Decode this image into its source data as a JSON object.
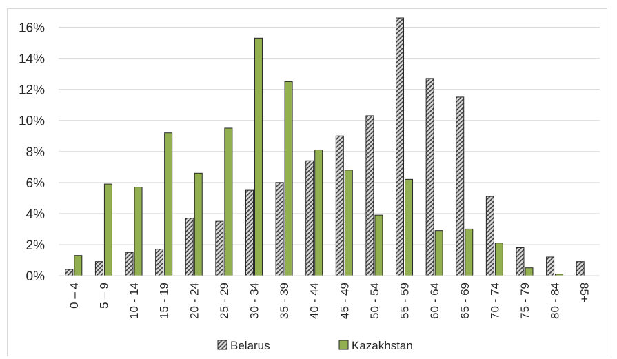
{
  "chart_data": {
    "type": "bar",
    "title": "",
    "xlabel": "",
    "ylabel": "",
    "ylim": [
      0,
      17
    ],
    "yticks": [
      "0%",
      "2%",
      "4%",
      "6%",
      "8%",
      "10%",
      "12%",
      "14%",
      "16%"
    ],
    "ytick_values": [
      0,
      2,
      4,
      6,
      8,
      10,
      12,
      14,
      16
    ],
    "grid": true,
    "legend_position": "bottom",
    "categories": [
      "0 – 4",
      "5 – 9",
      "10 - 14",
      "15 - 19",
      "20 - 24",
      "25 - 29",
      "30 - 34",
      "35 - 39",
      "40 - 44",
      "45 - 49",
      "50 - 54",
      "55 - 59",
      "60 - 64",
      "65 - 69",
      "70 - 74",
      "75 - 79",
      "80 - 84",
      "85+"
    ],
    "series": [
      {
        "name": "Belarus",
        "color": "#7f7f7f",
        "values": [
          0.4,
          0.9,
          1.5,
          1.7,
          3.7,
          3.5,
          5.5,
          6.0,
          7.4,
          9.0,
          10.3,
          16.6,
          12.7,
          11.5,
          5.1,
          1.8,
          1.2,
          0.9
        ]
      },
      {
        "name": "Kazakhstan",
        "color": "#92b050",
        "values": [
          1.3,
          5.9,
          5.7,
          9.2,
          6.6,
          9.5,
          15.3,
          12.5,
          8.1,
          6.8,
          3.9,
          6.2,
          2.9,
          3.0,
          2.1,
          0.5,
          0.1,
          0.0
        ]
      }
    ]
  }
}
